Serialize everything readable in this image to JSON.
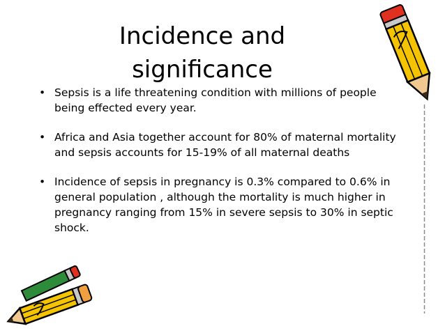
{
  "slide": {
    "title_line1": "Incidence and",
    "title_line2": "significance",
    "bullet_symbol": "•",
    "bullets": [
      {
        "text": "Sepsis is a life threatening condition with millions of people being effected every year."
      },
      {
        "text": "Africa and Asia together account for 80% of maternal mortality and sepsis accounts for 15-19% of all maternal deaths"
      },
      {
        "text": "Incidence of sepsis in pregnancy is 0.3% compared to 0.6% in general population , although the mortality is much higher in pregnancy ranging from 15% in severe sepsis to 30% in septic shock."
      }
    ]
  },
  "decorations": {
    "pencil_top_right": "pencil-icon",
    "pencils_bottom_left": "pencils-icon",
    "colors": {
      "pencil_body": "#f5c400",
      "pencil_outline": "#000000",
      "pencil_tip": "#f0a040",
      "pencil_eraser": "#e03020",
      "green_pencil": "#2e8b3a",
      "side_line": "#8a8a8a"
    }
  }
}
